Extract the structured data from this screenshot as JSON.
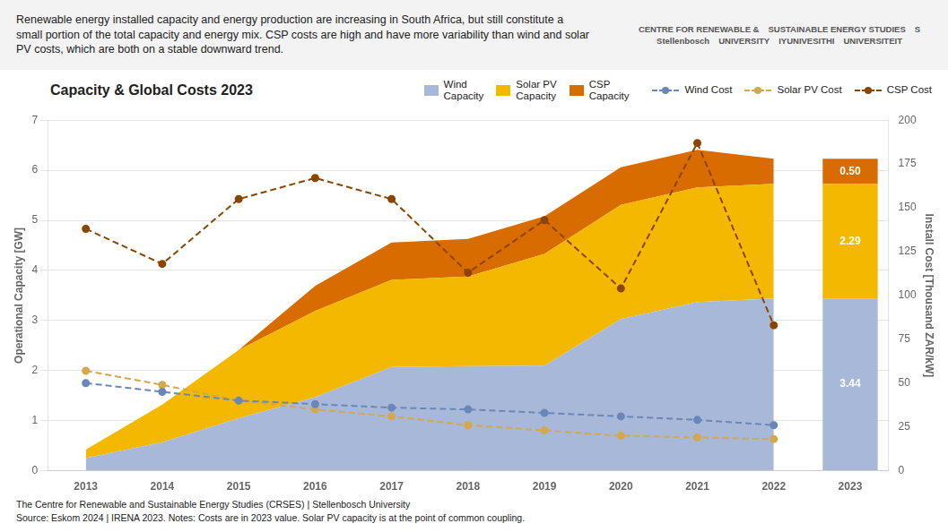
{
  "chart_data": {
    "type": "area",
    "title": "Capacity & Global Costs 2023",
    "subtitle": "Renewable energy installed capacity and energy production are increasing in South Africa, but still constitute a small portion of the total capacity and energy mix. CSP costs are high and have more variability than wind and solar PV costs, which are both on a stable downward trend.",
    "annotations": [
      "CENTRE FOR RENEWABLE &",
      "SUSTAINABLE ENERGY STUDIES",
      "S",
      "Stellenbosch",
      "UNIVERSITY",
      "IYUNIVESITHI",
      "UNIVERSITEIT",
      "The Centre for Renewable and Sustainable Energy Studies (CRSES) | Stellenbosch University",
      "Source: Eskom 2024 | IRENA 2023. Notes: Costs are in 2023 value. Solar PV capacity is at the point of common coupling."
    ],
    "categories": [
      "2013",
      "2014",
      "2015",
      "2016",
      "2017",
      "2018",
      "2019",
      "2020",
      "2021",
      "2022",
      "2023"
    ],
    "ylabel": "Operational Capacity [GW]",
    "y2label": "Install Cost [Thousand ZAR/kW]",
    "ylim": [
      0,
      7
    ],
    "yticks": [
      0,
      1,
      2,
      3,
      4,
      5,
      6,
      7
    ],
    "y2lim": [
      0,
      200
    ],
    "y2ticks": [
      0,
      25,
      50,
      75,
      100,
      125,
      150,
      175,
      200
    ],
    "stacked": true,
    "grid": true,
    "legend": "top",
    "series": [
      {
        "name": "Wind\nCapacity",
        "type": "area",
        "color": "#a8b8d8",
        "values": [
          0.25,
          0.57,
          1.05,
          1.47,
          2.07,
          2.09,
          2.1,
          3.03,
          3.37,
          3.44,
          null
        ]
      },
      {
        "name": "Solar PV\nCapacity",
        "type": "area",
        "color": "#f5b800",
        "values": [
          0.17,
          0.75,
          1.36,
          1.72,
          1.74,
          1.79,
          2.23,
          2.28,
          2.29,
          2.29,
          null
        ]
      },
      {
        "name": "CSP\nCapacity",
        "type": "area",
        "color": "#d96c00",
        "values": [
          0.0,
          0.0,
          0.0,
          0.5,
          0.75,
          0.75,
          0.75,
          0.75,
          0.75,
          0.5,
          null
        ]
      },
      {
        "name": "Wind Cost",
        "type": "line",
        "axis": "y2",
        "color": "#6888b8",
        "line_style": "dashed",
        "marker": "circle",
        "values": [
          50,
          45,
          40,
          38,
          36,
          35,
          33,
          31,
          29,
          26,
          null
        ]
      },
      {
        "name": "Solar PV Cost",
        "type": "line",
        "axis": "y2",
        "color": "#d4a84b",
        "line_style": "dashed",
        "marker": "circle",
        "values": [
          57,
          49,
          40,
          35,
          31,
          26,
          23,
          20,
          19,
          18,
          null
        ]
      },
      {
        "name": "CSP Cost",
        "type": "line",
        "axis": "y2",
        "color": "#8b4500",
        "line_style": "dashed",
        "marker": "circle",
        "values": [
          138,
          118,
          155,
          167,
          155,
          113,
          143,
          104,
          187,
          83,
          null
        ]
      },
      {
        "name": "Wind\nCapacity",
        "type": "bar",
        "color": "#a8b8d8",
        "data_labels": true,
        "values": [
          null,
          null,
          null,
          null,
          null,
          null,
          null,
          null,
          null,
          null,
          3.44
        ],
        "value_labels": [
          null,
          null,
          null,
          null,
          null,
          null,
          null,
          null,
          null,
          null,
          "3.44"
        ]
      },
      {
        "name": "Solar PV\nCapacity",
        "type": "bar",
        "color": "#f5b800",
        "data_labels": true,
        "values": [
          null,
          null,
          null,
          null,
          null,
          null,
          null,
          null,
          null,
          null,
          2.29
        ],
        "value_labels": [
          null,
          null,
          null,
          null,
          null,
          null,
          null,
          null,
          null,
          null,
          "2.29"
        ]
      },
      {
        "name": "CSP\nCapacity",
        "type": "bar",
        "color": "#d96c00",
        "data_labels": true,
        "values": [
          null,
          null,
          null,
          null,
          null,
          null,
          null,
          null,
          null,
          null,
          0.5
        ],
        "value_labels": [
          null,
          null,
          null,
          null,
          null,
          null,
          null,
          null,
          null,
          null,
          "0.50"
        ]
      }
    ]
  }
}
